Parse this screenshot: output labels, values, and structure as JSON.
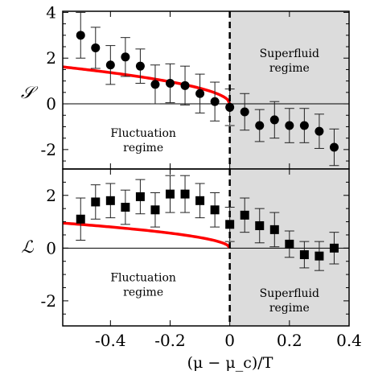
{
  "chart_data": {
    "xlabel": "(μ − μ_c)/T",
    "xlim": [
      -0.56,
      0.4
    ],
    "x_ticks": [
      "-0.4",
      "-0.2",
      "0",
      "0.2",
      "0.4"
    ],
    "x_tick_values": [
      -0.4,
      -0.2,
      0,
      0.2,
      0.4
    ],
    "critical_line_x": 0,
    "shaded_region_x": [
      0,
      0.4
    ],
    "shade_color": "#dcdcdc",
    "fit_color": "#ff0000",
    "panels": [
      {
        "id": "S",
        "type": "scatter",
        "ylabel": "𝒮",
        "ylim": [
          -2.85,
          4.05
        ],
        "y_ticks": [
          "4",
          "2",
          "0",
          "-2"
        ],
        "y_tick_values": [
          4,
          2,
          0,
          -2
        ],
        "marker": "circle",
        "points": [
          {
            "x": -0.5,
            "y": 3.0,
            "err": 1.0
          },
          {
            "x": -0.45,
            "y": 2.45,
            "err": 0.9
          },
          {
            "x": -0.4,
            "y": 1.7,
            "err": 0.85
          },
          {
            "x": -0.35,
            "y": 2.05,
            "err": 0.85
          },
          {
            "x": -0.3,
            "y": 1.65,
            "err": 0.75
          },
          {
            "x": -0.25,
            "y": 0.85,
            "err": 0.85
          },
          {
            "x": -0.2,
            "y": 0.9,
            "err": 0.85
          },
          {
            "x": -0.15,
            "y": 0.8,
            "err": 0.85
          },
          {
            "x": -0.1,
            "y": 0.45,
            "err": 0.85
          },
          {
            "x": -0.05,
            "y": 0.1,
            "err": 0.85
          },
          {
            "x": 0.0,
            "y": -0.15,
            "err": 0.8
          },
          {
            "x": 0.05,
            "y": -0.35,
            "err": 0.8
          },
          {
            "x": 0.1,
            "y": -0.95,
            "err": 0.7
          },
          {
            "x": 0.15,
            "y": -0.7,
            "err": 0.8
          },
          {
            "x": 0.2,
            "y": -0.95,
            "err": 0.75
          },
          {
            "x": 0.25,
            "y": -0.95,
            "err": 0.75
          },
          {
            "x": 0.3,
            "y": -1.2,
            "err": 0.75
          },
          {
            "x": 0.35,
            "y": -1.9,
            "err": 0.8
          }
        ],
        "curve": {
          "form": "A*sqrt(-x)",
          "A": 2.16,
          "x_from": -0.56,
          "x_to": 0
        },
        "annotations": [
          {
            "lines": [
              "Superfluid",
              "regime"
            ],
            "x": 0.2,
            "y": 2.05
          },
          {
            "lines": [
              "Fluctuation",
              "regime"
            ],
            "x": -0.29,
            "y": -1.45
          }
        ]
      },
      {
        "id": "L",
        "type": "scatter",
        "ylabel": "ℒ",
        "ylim": [
          -2.95,
          3.0
        ],
        "y_ticks": [
          "2",
          "0",
          "-2"
        ],
        "y_tick_values": [
          2,
          0,
          -2
        ],
        "marker": "square",
        "points": [
          {
            "x": -0.5,
            "y": 1.1,
            "err": 0.8
          },
          {
            "x": -0.45,
            "y": 1.75,
            "err": 0.65
          },
          {
            "x": -0.4,
            "y": 1.8,
            "err": 0.65
          },
          {
            "x": -0.35,
            "y": 1.55,
            "err": 0.65
          },
          {
            "x": -0.3,
            "y": 1.95,
            "err": 0.65
          },
          {
            "x": -0.25,
            "y": 1.45,
            "err": 0.65
          },
          {
            "x": -0.2,
            "y": 2.05,
            "err": 0.7
          },
          {
            "x": -0.15,
            "y": 2.05,
            "err": 0.7
          },
          {
            "x": -0.1,
            "y": 1.8,
            "err": 0.65
          },
          {
            "x": -0.05,
            "y": 1.45,
            "err": 0.65
          },
          {
            "x": 0.0,
            "y": 0.9,
            "err": 0.65
          },
          {
            "x": 0.05,
            "y": 1.25,
            "err": 0.65
          },
          {
            "x": 0.1,
            "y": 0.85,
            "err": 0.65
          },
          {
            "x": 0.15,
            "y": 0.7,
            "err": 0.65
          },
          {
            "x": 0.2,
            "y": 0.15,
            "err": 0.5
          },
          {
            "x": 0.25,
            "y": -0.25,
            "err": 0.5
          },
          {
            "x": 0.3,
            "y": -0.3,
            "err": 0.55
          },
          {
            "x": 0.35,
            "y": 0.0,
            "err": 0.6
          }
        ],
        "curve": {
          "form": "A*sqrt(-x)",
          "A": 1.27,
          "x_from": -0.56,
          "x_to": 0
        },
        "annotations": [
          {
            "lines": [
              "Fluctuation",
              "regime"
            ],
            "x": -0.29,
            "y": -1.25
          },
          {
            "lines": [
              "Superfluid",
              "regime"
            ],
            "x": 0.2,
            "y": -1.85
          }
        ]
      }
    ]
  }
}
